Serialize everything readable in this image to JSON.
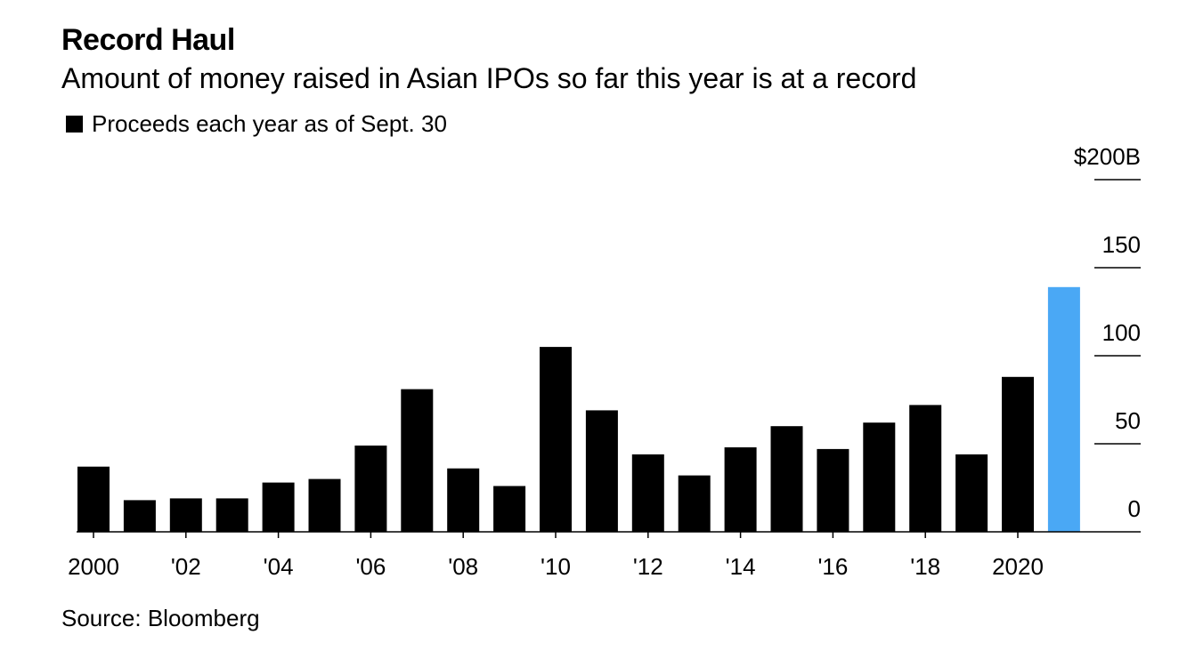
{
  "title": "Record Haul",
  "subtitle": "Amount of money raised in Asian IPOs so far this year is at a record",
  "legend": {
    "label": "Proceeds each year as of Sept. 30",
    "color": "#000000"
  },
  "source": "Source: Bloomberg",
  "chart_data": {
    "type": "bar",
    "categories": [
      "2000",
      "2001",
      "2002",
      "2003",
      "2004",
      "2005",
      "2006",
      "2007",
      "2008",
      "2009",
      "2010",
      "2011",
      "2012",
      "2013",
      "2014",
      "2015",
      "2016",
      "2017",
      "2018",
      "2019",
      "2020",
      "2021"
    ],
    "series": [
      {
        "name": "Proceeds each year as of Sept. 30",
        "values": [
          37,
          18,
          19,
          19,
          28,
          30,
          49,
          81,
          36,
          26,
          105,
          69,
          44,
          32,
          48,
          60,
          47,
          62,
          72,
          44,
          88,
          139
        ]
      }
    ],
    "highlight": {
      "index": 21,
      "color": "#4aa8f5"
    },
    "bar_color": "#000000",
    "x_tick_labels": [
      "2000",
      "'02",
      "'04",
      "'06",
      "'08",
      "'10",
      "'12",
      "'14",
      "'16",
      "'18",
      "2020"
    ],
    "x_tick_years": [
      2000,
      2002,
      2004,
      2006,
      2008,
      2010,
      2012,
      2014,
      2016,
      2018,
      2020
    ],
    "y_ticks": [
      0,
      50,
      100,
      150,
      200
    ],
    "y_tick_labels": [
      "0",
      "50",
      "100",
      "150",
      "$200B"
    ],
    "ylim": [
      0,
      200
    ],
    "y_axis_side": "right",
    "grid": false
  }
}
